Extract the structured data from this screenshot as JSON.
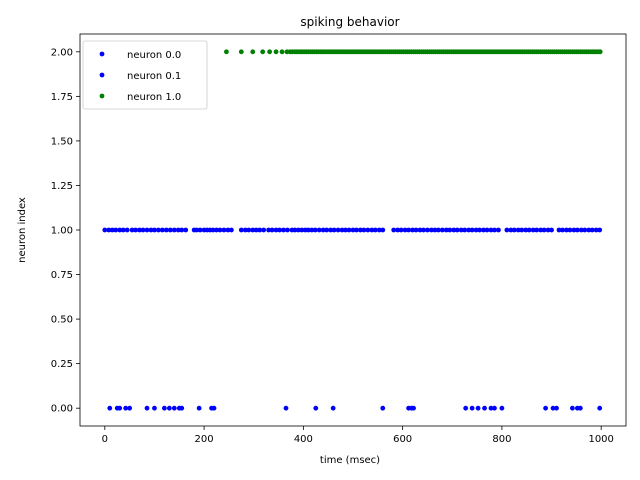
{
  "chart_data": {
    "type": "scatter",
    "title": "spiking behavior",
    "xlabel": "time (msec)",
    "ylabel": "neuron index",
    "xlim": [
      -50,
      1050
    ],
    "ylim": [
      -0.1,
      2.1
    ],
    "xticks": [
      0,
      200,
      400,
      600,
      800,
      1000
    ],
    "xtick_labels": [
      "0",
      "200",
      "400",
      "600",
      "800",
      "1000"
    ],
    "yticks": [
      0.0,
      0.25,
      0.5,
      0.75,
      1.0,
      1.25,
      1.5,
      1.75,
      2.0
    ],
    "ytick_labels": [
      "0.00",
      "0.25",
      "0.50",
      "0.75",
      "1.00",
      "1.25",
      "1.50",
      "1.75",
      "2.00"
    ],
    "grid": false,
    "legend_location": "top-left",
    "series": [
      {
        "name": "neuron 0.0",
        "color": "#0000ff",
        "y": 0.0,
        "x": [
          10,
          25,
          30,
          42,
          50,
          85,
          100,
          120,
          130,
          140,
          150,
          155,
          190,
          215,
          220,
          365,
          425,
          460,
          560,
          612,
          618,
          622,
          727,
          740,
          752,
          765,
          778,
          785,
          800,
          888,
          903,
          910,
          942,
          952,
          958,
          997
        ]
      },
      {
        "name": "neuron 0.1",
        "color": "#0000ff",
        "y": 1.0,
        "x": [
          0,
          8,
          15,
          22,
          30,
          37,
          45,
          55,
          62,
          70,
          77,
          85,
          93,
          100,
          108,
          116,
          124,
          132,
          140,
          148,
          155,
          163,
          180,
          185,
          192,
          200,
          206,
          212,
          218,
          225,
          232,
          240,
          248,
          255,
          275,
          283,
          290,
          298,
          305,
          312,
          320,
          330,
          337,
          345,
          352,
          360,
          368,
          377,
          383,
          390,
          397,
          404,
          410,
          417,
          424,
          432,
          440,
          447,
          455,
          462,
          470,
          478,
          485,
          492,
          500,
          507,
          515,
          522,
          530,
          538,
          545,
          553,
          560,
          582,
          590,
          597,
          605,
          612,
          620,
          627,
          635,
          642,
          650,
          658,
          665,
          672,
          680,
          688,
          695,
          703,
          710,
          718,
          725,
          733,
          740,
          748,
          755,
          763,
          770,
          778,
          785,
          793,
          810,
          818,
          825,
          833,
          840,
          848,
          855,
          863,
          870,
          878,
          885,
          893,
          900,
          915,
          922,
          930,
          937,
          945,
          952,
          960,
          967,
          975,
          982,
          990,
          997
        ]
      },
      {
        "name": "neuron 1.0",
        "color": "#008000",
        "y": 2.0,
        "x": [
          245,
          275,
          298,
          318,
          332,
          345,
          357,
          367,
          373,
          378,
          383,
          387,
          391,
          395,
          398,
          402,
          406,
          410,
          414,
          418,
          422,
          426,
          430,
          434,
          438,
          442,
          446,
          450,
          454,
          458,
          462,
          466,
          470,
          474,
          478,
          482,
          486,
          490,
          494,
          498,
          502,
          506,
          510,
          514,
          518,
          522,
          526,
          530,
          534,
          538,
          542,
          546,
          550,
          554,
          558,
          562,
          566,
          570,
          574,
          578,
          582,
          586,
          590,
          594,
          598,
          602,
          606,
          610,
          614,
          618,
          622,
          626,
          630,
          634,
          638,
          642,
          646,
          650,
          654,
          658,
          662,
          666,
          670,
          674,
          678,
          682,
          686,
          690,
          694,
          698,
          702,
          706,
          710,
          714,
          718,
          722,
          726,
          730,
          734,
          738,
          742,
          746,
          750,
          754,
          758,
          762,
          766,
          770,
          774,
          778,
          782,
          786,
          790,
          794,
          798,
          802,
          806,
          810,
          814,
          818,
          822,
          826,
          830,
          834,
          838,
          842,
          846,
          850,
          854,
          858,
          862,
          866,
          870,
          874,
          878,
          882,
          886,
          890,
          894,
          898,
          902,
          906,
          910,
          914,
          918,
          922,
          926,
          930,
          934,
          938,
          942,
          946,
          950,
          954,
          958,
          962,
          966,
          970,
          974,
          978,
          982,
          986,
          990,
          994,
          998
        ]
      }
    ]
  }
}
